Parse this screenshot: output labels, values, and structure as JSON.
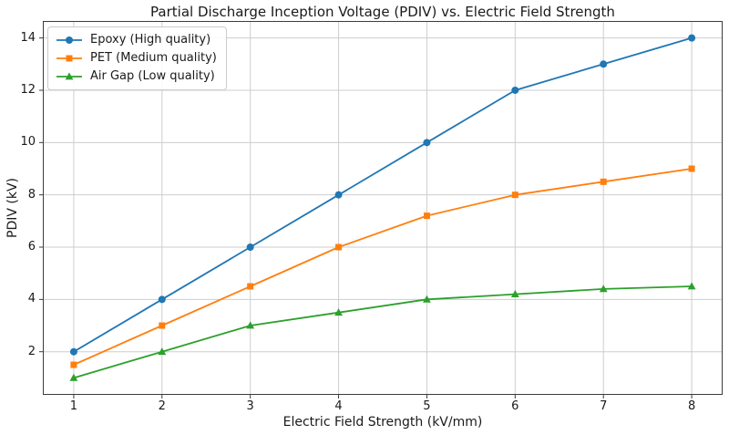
{
  "chart_data": {
    "type": "line",
    "title": "Partial Discharge Inception Voltage (PDIV) vs. Electric Field Strength",
    "xlabel": "Electric Field Strength (kV/mm)",
    "ylabel": "PDIV (kV)",
    "x": [
      1,
      2,
      3,
      4,
      5,
      6,
      7,
      8
    ],
    "series": [
      {
        "name": "Epoxy (High quality)",
        "color": "#1f77b4",
        "marker": "circle",
        "values": [
          2,
          4,
          6,
          8,
          10,
          12,
          13,
          14
        ]
      },
      {
        "name": "PET (Medium quality)",
        "color": "#ff7f0e",
        "marker": "square",
        "values": [
          1.5,
          3,
          4.5,
          6,
          7.2,
          8,
          8.5,
          9
        ]
      },
      {
        "name": "Air Gap (Low quality)",
        "color": "#2ca02c",
        "marker": "triangle",
        "values": [
          1,
          2,
          3,
          3.5,
          4,
          4.2,
          4.4,
          4.5
        ]
      }
    ],
    "xlim": [
      0.65,
      8.35
    ],
    "ylim": [
      0.35,
      14.65
    ],
    "xticks": [
      1,
      2,
      3,
      4,
      5,
      6,
      7,
      8
    ],
    "yticks": [
      2,
      4,
      6,
      8,
      10,
      12,
      14
    ],
    "grid": true,
    "legend_position": "upper-left",
    "colors": {
      "grid": "#cdcdcd",
      "spine": "#3c3c3c",
      "background": "#ffffff",
      "text": "#1a1a1a"
    }
  }
}
